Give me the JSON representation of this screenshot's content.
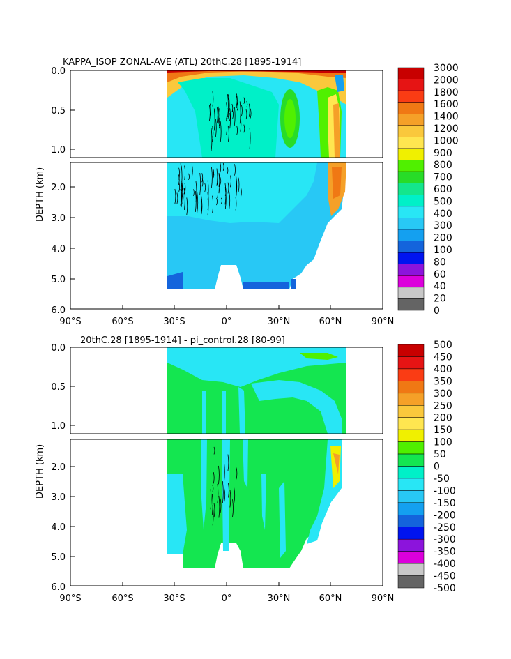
{
  "panels": [
    {
      "title": "KAPPA_ISOP ZONAL-AVE (ATL) 20thC.28 [1895-1914]",
      "ylabel": "DEPTH (km)",
      "x_ticks": [
        "90°S",
        "60°S",
        "30°S",
        "0°",
        "30°N",
        "60°N",
        "90°N"
      ],
      "y_ticks_upper": [
        "0.0",
        "0.5",
        "1.0"
      ],
      "y_ticks_lower": [
        "2.0",
        "3.0",
        "4.0",
        "5.0",
        "6.0"
      ],
      "colorbar": {
        "labels": [
          "3000",
          "2000",
          "1800",
          "1600",
          "1400",
          "1200",
          "1000",
          "900",
          "800",
          "700",
          "600",
          "500",
          "400",
          "300",
          "200",
          "100",
          "80",
          "60",
          "40",
          "20",
          "0"
        ],
        "colors": [
          "#c80000",
          "#e61414",
          "#fa3c14",
          "#f07814",
          "#f5a028",
          "#fac83c",
          "#ffe650",
          "#f0f000",
          "#50f000",
          "#28dc28",
          "#14e68c",
          "#00f0c8",
          "#28e6f5",
          "#28c8f5",
          "#14a0f0",
          "#1464dc",
          "#0014f0",
          "#8c14dc",
          "#dc00dc",
          "#c8c8c8",
          "#646464"
        ]
      }
    },
    {
      "title": "20thC.28 [1895-1914] - pi_control.28 [80-99]",
      "ylabel": "DEPTH (km)",
      "x_ticks": [
        "90°S",
        "60°S",
        "30°S",
        "0°",
        "30°N",
        "60°N",
        "90°N"
      ],
      "y_ticks_upper": [
        "0.0",
        "0.5",
        "1.0"
      ],
      "y_ticks_lower": [
        "2.0",
        "3.0",
        "4.0",
        "5.0",
        "6.0"
      ],
      "colorbar": {
        "labels": [
          "500",
          "450",
          "400",
          "350",
          "300",
          "250",
          "200",
          "150",
          "100",
          "50",
          "0",
          "-50",
          "-100",
          "-150",
          "-200",
          "-250",
          "-300",
          "-350",
          "-400",
          "-450",
          "-500"
        ],
        "colors": [
          "#c80000",
          "#e61414",
          "#fa3c14",
          "#f07814",
          "#f5a028",
          "#fac83c",
          "#ffe650",
          "#f0f000",
          "#50f000",
          "#14e650",
          "#00f0c8",
          "#28e6f5",
          "#28c8f5",
          "#14a0f0",
          "#1464dc",
          "#0014f0",
          "#8c14dc",
          "#dc00dc",
          "#c8c8c8",
          "#646464"
        ]
      }
    }
  ],
  "chart_data": [
    {
      "type": "heatmap",
      "title": "KAPPA_ISOP ZONAL-AVE (ATL) 20thC.28 [1895-1914]",
      "xlabel": "",
      "ylabel": "DEPTH (km)",
      "x_range": [
        -90,
        90
      ],
      "y_range_upper": [
        0.0,
        1.1
      ],
      "y_range_lower": [
        1.1,
        6.0
      ],
      "ocean_lat_range": [
        -34,
        70
      ],
      "levels": [
        0,
        20,
        40,
        60,
        80,
        100,
        200,
        300,
        400,
        500,
        600,
        700,
        800,
        900,
        1000,
        1200,
        1400,
        1600,
        1800,
        2000,
        3000
      ],
      "regions": [
        {
          "lat": [
            -34,
            70
          ],
          "depth": [
            0.0,
            5.3
          ],
          "value": 250
        },
        {
          "lat": [
            -34,
            65
          ],
          "depth": [
            0.0,
            0.8
          ],
          "value": 450
        },
        {
          "lat": [
            -34,
            30
          ],
          "depth": [
            1.1,
            3.1
          ],
          "value": 450
        },
        {
          "lat": [
            -34,
            40
          ],
          "depth": [
            0.0,
            0.1
          ],
          "value": 1300
        },
        {
          "lat": [
            -34,
            30
          ],
          "depth": [
            0.0,
            0.02
          ],
          "value": 2200
        },
        {
          "lat": [
            32,
            45
          ],
          "depth": [
            0.1,
            1.0
          ],
          "value": 700
        },
        {
          "lat": [
            52,
            60
          ],
          "depth": [
            0.2,
            1.0
          ],
          "value": 750
        },
        {
          "lat": [
            58,
            66
          ],
          "depth": [
            0.3,
            2.7
          ],
          "value": 1200
        },
        {
          "lat": [
            -34,
            63
          ],
          "depth": [
            4.5,
            5.3
          ],
          "value": 150
        }
      ]
    },
    {
      "type": "heatmap",
      "title": "20thC.28 [1895-1914] - pi_control.28 [80-99]",
      "xlabel": "",
      "ylabel": "DEPTH (km)",
      "x_range": [
        -90,
        90
      ],
      "y_range_upper": [
        0.0,
        1.1
      ],
      "y_range_lower": [
        1.1,
        6.0
      ],
      "ocean_lat_range": [
        -34,
        70
      ],
      "levels": [
        -500,
        -450,
        -400,
        -350,
        -300,
        -250,
        -200,
        -150,
        -100,
        -50,
        0,
        50,
        100,
        150,
        200,
        250,
        300,
        350,
        400,
        450,
        500
      ],
      "regions": [
        {
          "lat": [
            -34,
            65
          ],
          "depth": [
            0.0,
            5.3
          ],
          "value": 30
        },
        {
          "lat": [
            -34,
            70
          ],
          "depth": [
            0.0,
            0.25
          ],
          "value": -30
        },
        {
          "lat": [
            5,
            60
          ],
          "depth": [
            0.2,
            0.9
          ],
          "value": -30
        },
        {
          "lat": [
            45,
            62
          ],
          "depth": [
            1.1,
            4.7
          ],
          "value": -30
        },
        {
          "lat": [
            -34,
            -30
          ],
          "depth": [
            2.5,
            4.9
          ],
          "value": -30
        },
        {
          "lat": [
            60,
            66
          ],
          "depth": [
            1.3,
            2.6
          ],
          "value": 180
        },
        {
          "lat": [
            -4,
            0
          ],
          "depth": [
            0.0,
            4.8
          ],
          "value": -30
        },
        {
          "lat": [
            -16,
            -13
          ],
          "depth": [
            0.2,
            5.3
          ],
          "value": -30
        }
      ]
    }
  ]
}
